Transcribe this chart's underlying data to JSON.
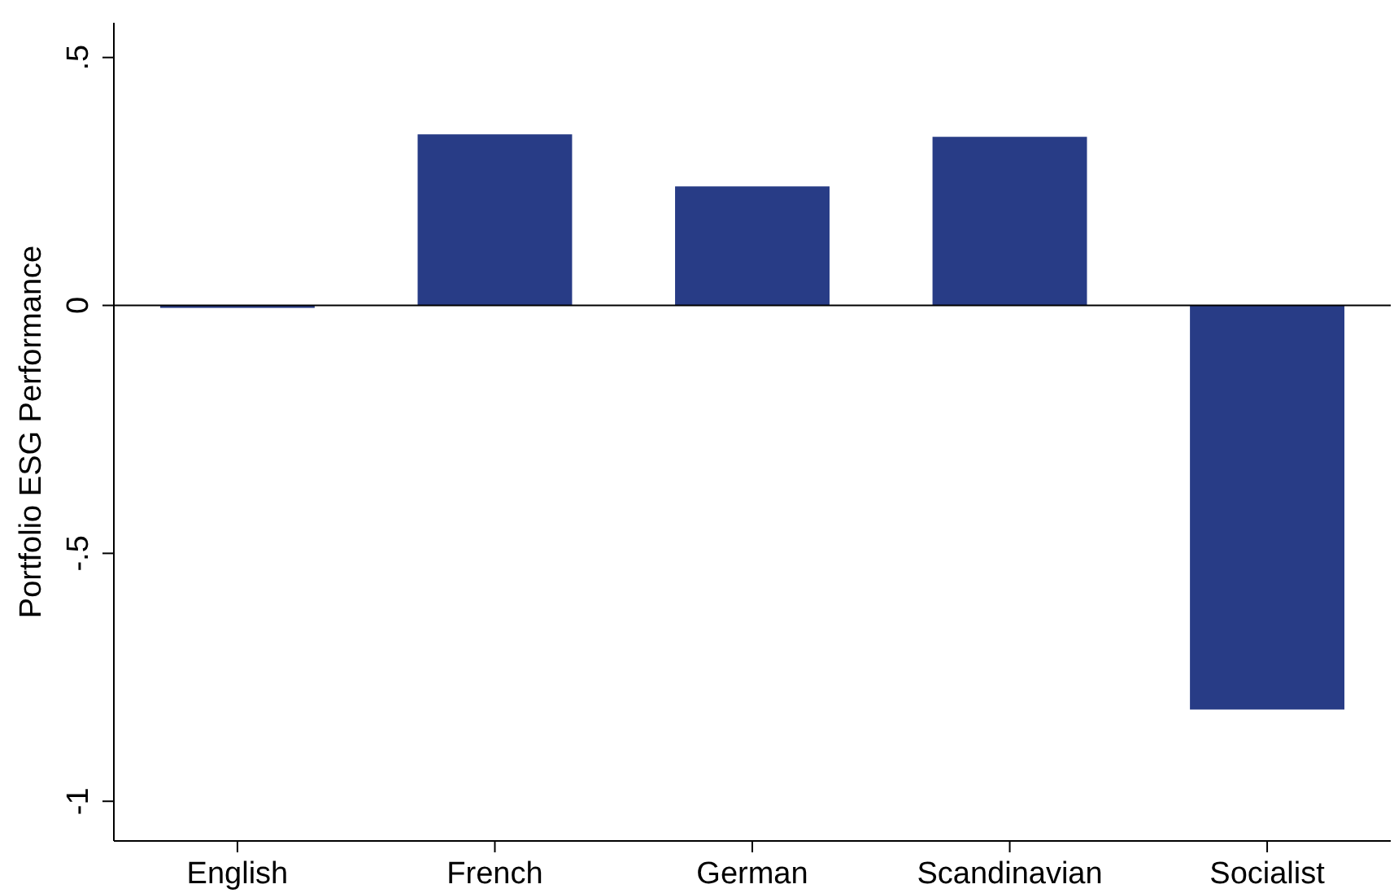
{
  "chart_data": {
    "type": "bar",
    "ylabel": "Portfolio ESG Performance",
    "categories": [
      "English",
      "French",
      "German",
      "Scandinavian",
      "Socialist"
    ],
    "values": [
      -0.005,
      0.345,
      0.24,
      0.34,
      -0.815
    ],
    "color": "#283c86",
    "ylim": [
      -1.08,
      0.57
    ],
    "yticks": [
      {
        "value": -1,
        "label": "-1"
      },
      {
        "value": -0.5,
        "label": "-.5"
      },
      {
        "value": 0,
        "label": "0"
      },
      {
        "value": 0.5,
        "label": ".5"
      }
    ],
    "ref_lines": [
      {
        "axis": "y",
        "value": 0,
        "color": "#000000"
      }
    ],
    "grid": false
  }
}
